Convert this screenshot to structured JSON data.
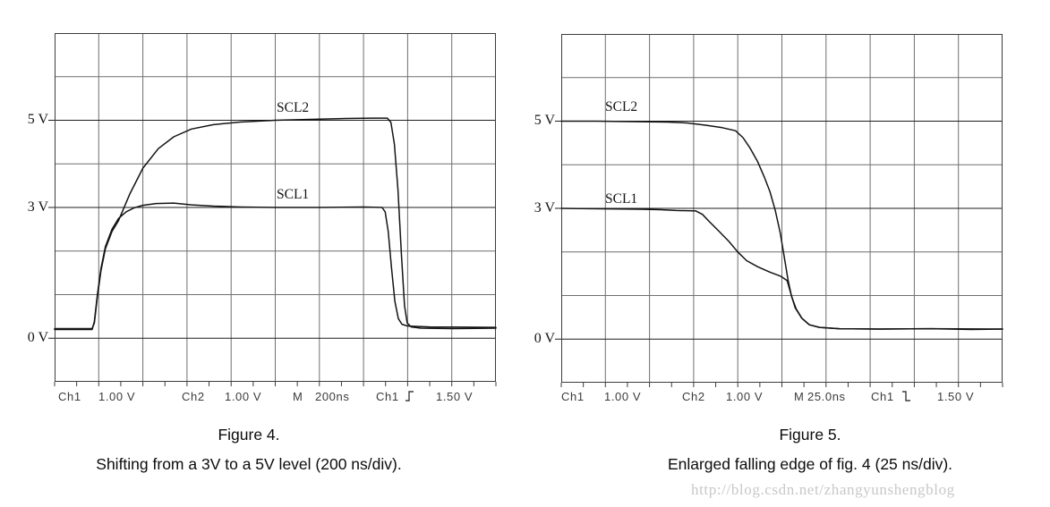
{
  "figure4": {
    "y_labels": [
      "5 V",
      "3 V",
      "0 V"
    ],
    "trace_labels": {
      "scl2": "SCL2",
      "scl1": "SCL1"
    },
    "status": {
      "ch1": "Ch1",
      "ch1_scale": "1.00 V",
      "ch2": "Ch2",
      "ch2_scale": "1.00 V",
      "m": "M",
      "timebase": "200ns",
      "trigger_source": "Ch1",
      "trigger_slope": "rising",
      "trigger_level": "1.50 V"
    },
    "caption_title": "Figure 4.",
    "caption_text": "Shifting from a 3V to a 5V level (200 ns/div)."
  },
  "figure5": {
    "y_labels": [
      "5 V",
      "3 V",
      "0 V"
    ],
    "trace_labels": {
      "scl2": "SCL2",
      "scl1": "SCL1"
    },
    "status": {
      "ch1": "Ch1",
      "ch1_scale": "1.00 V",
      "ch2": "Ch2",
      "ch2_scale": "1.00 V",
      "m": "M",
      "timebase": "25.0ns",
      "trigger_source": "Ch1",
      "trigger_slope": "falling",
      "trigger_level": "1.50 V"
    },
    "caption_title": "Figure 5.",
    "caption_text": "Enlarged falling edge of fig. 4 (25 ns/div)."
  },
  "watermark": "http://blog.csdn.net/zhangyunshengblog",
  "colors": {
    "trace": "#141414",
    "grid": "#6f6f6f",
    "grid_dark": "#1e1e1e",
    "border": "#3c3c3c",
    "status_text": "#3b3b3b",
    "watermark": "#c8c8c8"
  },
  "chart_data": [
    {
      "id": "fig4",
      "type": "line",
      "title": "Figure 4. Shifting from a 3V to a 5V level (200 ns/div)",
      "xlabel": "time, 10 divisions at 200 ns/div",
      "ylabel": "voltage, 8 divisions at 1.00 V/div",
      "x_divisions": 10,
      "y_divisions": 8,
      "time_per_div": "200ns",
      "volts_per_div": 1.0,
      "y_axis_volts_top": 7,
      "y_axis_volts_bottom": -1,
      "labeled_levels_v": [
        5,
        3,
        0
      ],
      "grid": true,
      "series": [
        {
          "name": "SCL2",
          "points": [
            [
              0,
              0.22
            ],
            [
              0.85,
              0.22
            ],
            [
              0.9,
              0.35
            ],
            [
              0.97,
              0.95
            ],
            [
              1.05,
              1.55
            ],
            [
              1.15,
              2.05
            ],
            [
              1.3,
              2.45
            ],
            [
              1.45,
              2.7
            ],
            [
              1.7,
              3.3
            ],
            [
              2.0,
              3.9
            ],
            [
              2.35,
              4.35
            ],
            [
              2.7,
              4.62
            ],
            [
              3.1,
              4.8
            ],
            [
              3.6,
              4.9
            ],
            [
              4.2,
              4.96
            ],
            [
              5.0,
              5.0
            ],
            [
              5.8,
              5.02
            ],
            [
              6.6,
              5.04
            ],
            [
              7.2,
              5.05
            ],
            [
              7.54,
              5.05
            ],
            [
              7.62,
              4.95
            ],
            [
              7.7,
              4.45
            ],
            [
              7.78,
              3.4
            ],
            [
              7.86,
              1.9
            ],
            [
              7.93,
              0.75
            ],
            [
              7.99,
              0.35
            ],
            [
              8.08,
              0.26
            ],
            [
              8.3,
              0.23
            ],
            [
              9.0,
              0.22
            ],
            [
              10,
              0.23
            ]
          ]
        },
        {
          "name": "SCL1",
          "points": [
            [
              0,
              0.2
            ],
            [
              0.85,
              0.2
            ],
            [
              0.9,
              0.38
            ],
            [
              0.97,
              1.0
            ],
            [
              1.05,
              1.6
            ],
            [
              1.15,
              2.1
            ],
            [
              1.3,
              2.5
            ],
            [
              1.45,
              2.75
            ],
            [
              1.62,
              2.9
            ],
            [
              1.8,
              2.99
            ],
            [
              2.0,
              3.05
            ],
            [
              2.3,
              3.09
            ],
            [
              2.7,
              3.1
            ],
            [
              3.1,
              3.06
            ],
            [
              3.6,
              3.03
            ],
            [
              4.2,
              3.01
            ],
            [
              5.0,
              3.0
            ],
            [
              6.0,
              3.0
            ],
            [
              7.0,
              3.01
            ],
            [
              7.42,
              3.0
            ],
            [
              7.49,
              2.9
            ],
            [
              7.56,
              2.45
            ],
            [
              7.63,
              1.65
            ],
            [
              7.71,
              0.85
            ],
            [
              7.79,
              0.45
            ],
            [
              7.87,
              0.32
            ],
            [
              8.0,
              0.28
            ],
            [
              8.5,
              0.26
            ],
            [
              10,
              0.25
            ]
          ]
        }
      ]
    },
    {
      "id": "fig5",
      "type": "line",
      "title": "Figure 5. Enlarged falling edge of fig. 4 (25 ns/div)",
      "xlabel": "time, 10 divisions at 25.0 ns/div",
      "ylabel": "voltage, 8 divisions at 1.00 V/div",
      "x_divisions": 10,
      "y_divisions": 8,
      "time_per_div": "25.0ns",
      "volts_per_div": 1.0,
      "y_axis_volts_top": 7,
      "y_axis_volts_bottom": -1,
      "labeled_levels_v": [
        5,
        3,
        0
      ],
      "grid": true,
      "series": [
        {
          "name": "SCL2",
          "points": [
            [
              0,
              5.0
            ],
            [
              0.8,
              5.0
            ],
            [
              1.6,
              4.99
            ],
            [
              2.4,
              4.98
            ],
            [
              2.85,
              4.96
            ],
            [
              3.25,
              4.91
            ],
            [
              3.65,
              4.85
            ],
            [
              3.95,
              4.78
            ],
            [
              4.12,
              4.62
            ],
            [
              4.28,
              4.38
            ],
            [
              4.45,
              4.07
            ],
            [
              4.6,
              3.72
            ],
            [
              4.73,
              3.38
            ],
            [
              4.85,
              2.95
            ],
            [
              4.96,
              2.45
            ],
            [
              5.05,
              1.9
            ],
            [
              5.14,
              1.35
            ],
            [
              5.22,
              0.98
            ],
            [
              5.32,
              0.7
            ],
            [
              5.45,
              0.48
            ],
            [
              5.62,
              0.33
            ],
            [
              5.85,
              0.27
            ],
            [
              6.3,
              0.24
            ],
            [
              7.2,
              0.23
            ],
            [
              8.4,
              0.24
            ],
            [
              9.3,
              0.22
            ],
            [
              10,
              0.23
            ]
          ]
        },
        {
          "name": "SCL1",
          "points": [
            [
              0,
              3.0
            ],
            [
              0.9,
              2.99
            ],
            [
              1.8,
              2.98
            ],
            [
              2.25,
              2.97
            ],
            [
              2.6,
              2.95
            ],
            [
              3.05,
              2.94
            ],
            [
              3.2,
              2.86
            ],
            [
              3.35,
              2.7
            ],
            [
              3.55,
              2.5
            ],
            [
              3.8,
              2.24
            ],
            [
              4.0,
              2.0
            ],
            [
              4.2,
              1.8
            ],
            [
              4.45,
              1.66
            ],
            [
              4.72,
              1.54
            ],
            [
              4.98,
              1.44
            ],
            [
              5.12,
              1.34
            ],
            [
              5.2,
              1.05
            ],
            [
              5.3,
              0.72
            ],
            [
              5.45,
              0.48
            ],
            [
              5.62,
              0.33
            ],
            [
              5.85,
              0.27
            ],
            [
              6.3,
              0.24
            ],
            [
              7.2,
              0.23
            ],
            [
              8.4,
              0.24
            ],
            [
              10,
              0.23
            ]
          ]
        }
      ]
    }
  ]
}
